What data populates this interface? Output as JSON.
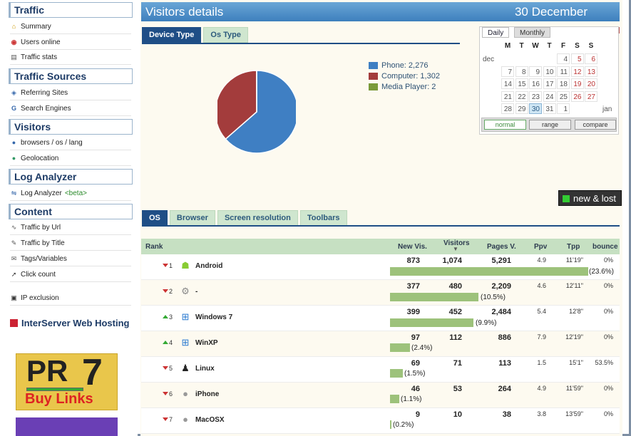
{
  "sidebar": {
    "sections": [
      {
        "title": "Traffic",
        "items": [
          {
            "label": "Summary",
            "icon": "home-icon"
          },
          {
            "label": "Users online",
            "icon": "live-icon"
          },
          {
            "label": "Traffic stats",
            "icon": "stats-icon"
          }
        ]
      },
      {
        "title": "Traffic Sources",
        "items": [
          {
            "label": "Referring Sites",
            "icon": "referrer-icon"
          },
          {
            "label": "Search Engines",
            "icon": "google-icon"
          }
        ]
      },
      {
        "title": "Visitors",
        "items": [
          {
            "label": "browsers / os / lang",
            "icon": "info-icon"
          },
          {
            "label": "Geolocation",
            "icon": "globe-icon"
          }
        ]
      },
      {
        "title": "Log Analyzer",
        "items": [
          {
            "label": "Log Analyzer",
            "beta": "<beta>",
            "icon": "log-icon"
          }
        ]
      },
      {
        "title": "Content",
        "items": [
          {
            "label": "Traffic by Url",
            "icon": "link-icon"
          },
          {
            "label": "Traffic by Title",
            "icon": "title-icon"
          },
          {
            "label": "Tags/Variables",
            "icon": "tag-icon"
          },
          {
            "label": "Click count",
            "icon": "cursor-icon"
          }
        ]
      }
    ],
    "ip_exclusion": "IP exclusion",
    "ad_title": "InterServer Web Hosting",
    "pr_banner": {
      "pr": "PR",
      "seven": "7",
      "buy": "Buy Links"
    }
  },
  "header": {
    "title": "Visitors details",
    "date": "30 December"
  },
  "device_tabs": [
    "Device Type",
    "Os Type"
  ],
  "chart_data": {
    "type": "pie",
    "slices": [
      {
        "name": "Phone",
        "value": 2276,
        "color": "#3f7fc3"
      },
      {
        "name": "Computer",
        "value": 1302,
        "color": "#a33c3c"
      },
      {
        "name": "Media Player",
        "value": 2,
        "color": "#7a9a3a"
      }
    ]
  },
  "legend": [
    "Phone: 2,276",
    "Computer: 1,302",
    "Media Player: 2"
  ],
  "calendar": {
    "tabs": {
      "daily": "Daily",
      "monthly": "Monthly"
    },
    "days_of_week": [
      "M",
      "T",
      "W",
      "T",
      "F",
      "S",
      "S"
    ],
    "month_prev": "dec",
    "month_next": "jan",
    "weeks": [
      [
        "",
        "",
        "",
        "",
        "4",
        "5",
        "6"
      ],
      [
        "7",
        "8",
        "9",
        "10",
        "11",
        "12",
        "13"
      ],
      [
        "14",
        "15",
        "16",
        "17",
        "18",
        "19",
        "20"
      ],
      [
        "21",
        "22",
        "23",
        "24",
        "25",
        "26",
        "27"
      ],
      [
        "28",
        "29",
        "30",
        "31",
        "1",
        "",
        ""
      ]
    ],
    "today": "30",
    "buttons": [
      "normal",
      "range",
      "compare"
    ]
  },
  "new_lost": "new & lost",
  "os_tabs": [
    "OS",
    "Browser",
    "Screen resolution",
    "Toolbars"
  ],
  "table": {
    "headers": {
      "rank": "Rank",
      "new_vis": "New Vis.",
      "visitors": "Visitors",
      "pages": "Pages V.",
      "ppv": "Ppv",
      "tpp": "Tpp",
      "bounce": "bounce"
    },
    "rows": [
      {
        "rank": "1",
        "trend": "down",
        "icon": "android-icon",
        "name": "Android",
        "new_vis": "873",
        "visitors": "1,074",
        "pages": "5,291",
        "ppv": "4.9",
        "tpp": "11'19\"",
        "bounce": "0%",
        "share": 23.6,
        "share_label": "(23.6%)"
      },
      {
        "rank": "2",
        "trend": "down",
        "icon": "gear-icon",
        "name": "-",
        "new_vis": "377",
        "visitors": "480",
        "pages": "2,209",
        "ppv": "4.6",
        "tpp": "12'11\"",
        "bounce": "0%",
        "share": 10.5,
        "share_label": "(10.5%)"
      },
      {
        "rank": "3",
        "trend": "up",
        "icon": "windows-icon",
        "name": "Windows 7",
        "new_vis": "399",
        "visitors": "452",
        "pages": "2,484",
        "ppv": "5.4",
        "tpp": "12'8\"",
        "bounce": "0%",
        "share": 9.9,
        "share_label": "(9.9%)"
      },
      {
        "rank": "4",
        "trend": "up",
        "icon": "windows-icon",
        "name": "WinXP",
        "new_vis": "97",
        "visitors": "112",
        "pages": "886",
        "ppv": "7.9",
        "tpp": "12'19\"",
        "bounce": "0%",
        "share": 2.4,
        "share_label": "(2.4%)"
      },
      {
        "rank": "5",
        "trend": "down",
        "icon": "linux-icon",
        "name": "Linux",
        "new_vis": "69",
        "visitors": "71",
        "pages": "113",
        "ppv": "1.5",
        "tpp": "15'1\"",
        "bounce": "53.5%",
        "share": 1.5,
        "share_label": "(1.5%)"
      },
      {
        "rank": "6",
        "trend": "down",
        "icon": "apple-icon",
        "name": "iPhone",
        "new_vis": "46",
        "visitors": "53",
        "pages": "264",
        "ppv": "4.9",
        "tpp": "11'59\"",
        "bounce": "0%",
        "share": 1.1,
        "share_label": "(1.1%)"
      },
      {
        "rank": "7",
        "trend": "down",
        "icon": "apple-icon",
        "name": "MacOSX",
        "new_vis": "9",
        "visitors": "10",
        "pages": "38",
        "ppv": "3.8",
        "tpp": "13'59\"",
        "bounce": "0%",
        "share": 0.2,
        "share_label": "(0.2%)"
      }
    ]
  }
}
